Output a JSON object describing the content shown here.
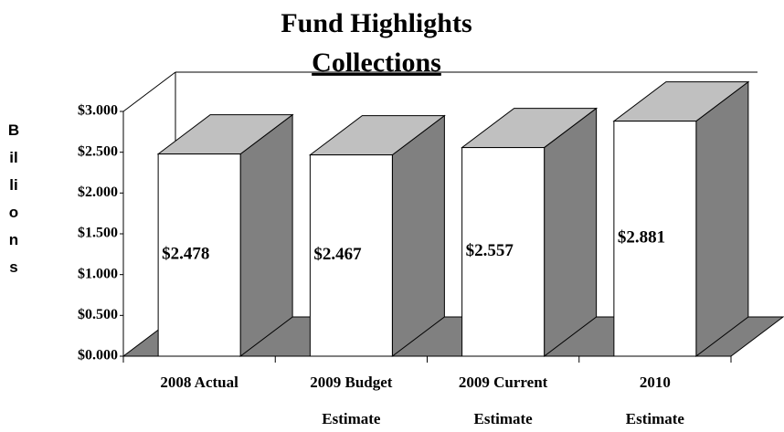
{
  "chart_data": {
    "type": "bar3d",
    "title": "Fund Highlights",
    "subtitle": "Collections",
    "ylabel": "Billions",
    "categories": [
      [
        "2008 Actual"
      ],
      [
        "2009 Budget",
        "Estimate"
      ],
      [
        "2009 Current",
        "Estimate"
      ],
      [
        "2010",
        "Estimate"
      ]
    ],
    "values": [
      2.478,
      2.467,
      2.557,
      2.881
    ],
    "value_labels": [
      "$2.478",
      "$2.467",
      "$2.557",
      "$2.881"
    ],
    "ylim": [
      0,
      3
    ],
    "yticks": [
      {
        "value": 0,
        "label": "$0.000"
      },
      {
        "value": 0.5,
        "label": "$0.500"
      },
      {
        "value": 1,
        "label": "$1.000"
      },
      {
        "value": 1.5,
        "label": "$1.500"
      },
      {
        "value": 2,
        "label": "$2.000"
      },
      {
        "value": 2.5,
        "label": "$2.500"
      },
      {
        "value": 3,
        "label": "$3.000"
      }
    ],
    "colors": {
      "front": "#ffffff",
      "top": "#c0c0c0",
      "side": "#808080",
      "floor": "#808080"
    }
  }
}
